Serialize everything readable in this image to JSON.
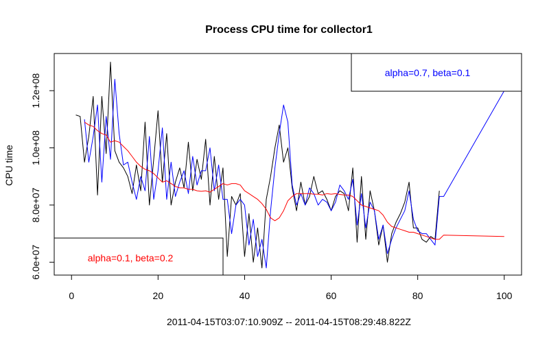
{
  "chart_data": {
    "type": "line",
    "title": "Process CPU time for collector1",
    "xlabel": "2011-04-15T03:07:10.909Z -- 2011-04-15T08:29:48.822Z",
    "ylabel": "CPU time",
    "xlim": [
      -4,
      104
    ],
    "ylim": [
      55500000,
      133000000
    ],
    "xticks": [
      0,
      20,
      40,
      60,
      80,
      100
    ],
    "xtick_labels": [
      "0",
      "20",
      "40",
      "60",
      "80",
      "100"
    ],
    "yticks": [
      60000000,
      80000000,
      100000000,
      120000000
    ],
    "ytick_labels": [
      "6.0e+07",
      "8.0e+07",
      "1.0e+08",
      "1.2e+08"
    ],
    "grid": false,
    "colors": {
      "observed": "#000000",
      "fit_a": "#0000ff",
      "fit_b": "#ff0000"
    },
    "series": [
      {
        "key": "observed",
        "color": "#000000",
        "x": [
          1,
          2,
          3,
          4,
          5,
          6,
          7,
          8,
          9,
          10,
          11,
          12,
          13,
          14,
          15,
          16,
          17,
          18,
          19,
          20,
          21,
          22,
          23,
          24,
          25,
          26,
          27,
          28,
          29,
          30,
          31,
          32,
          33,
          34,
          35,
          36,
          37,
          38,
          39,
          40,
          41,
          42,
          43,
          44,
          45,
          46,
          47,
          48,
          49,
          50,
          51,
          52,
          53,
          54,
          55,
          56,
          57,
          58,
          59,
          60,
          61,
          62,
          63,
          64,
          65,
          66,
          67,
          68,
          69,
          70,
          71,
          72,
          73,
          74,
          75,
          76,
          77,
          78,
          79,
          80,
          81,
          82,
          83,
          84,
          85
        ],
        "y": [
          111500000,
          111000000,
          95000000,
          104000000,
          118000000,
          83500000,
          118000000,
          98000000,
          130000000,
          99000000,
          95000000,
          93000000,
          90000000,
          84000000,
          94000000,
          85000000,
          109000000,
          80000000,
          96000000,
          113000000,
          88000000,
          105000000,
          80000000,
          88000000,
          93000000,
          86000000,
          102000000,
          85000000,
          96000000,
          89000000,
          103000000,
          80000000,
          97000000,
          82000000,
          93000000,
          62000000,
          83000000,
          80000000,
          84000000,
          62000000,
          77000000,
          60000000,
          72000000,
          58000000,
          82000000,
          90000000,
          100000000,
          108000000,
          95000000,
          100000000,
          86000000,
          78000000,
          88000000,
          80000000,
          83000000,
          90000000,
          84000000,
          85000000,
          82000000,
          78000000,
          83000000,
          85000000,
          84000000,
          78000000,
          93000000,
          67000000,
          90000000,
          68000000,
          85000000,
          78000000,
          66000000,
          73000000,
          60000000,
          70000000,
          74000000,
          77000000,
          81000000,
          88000000,
          72000000,
          72000000,
          68000000,
          67000000,
          69000000,
          68000000,
          85000000
        ]
      },
      {
        "key": "fit_a",
        "color": "#0000ff",
        "x": [
          3,
          4,
          5,
          6,
          7,
          8,
          9,
          10,
          11,
          12,
          13,
          14,
          15,
          16,
          17,
          18,
          19,
          20,
          21,
          22,
          23,
          24,
          25,
          26,
          27,
          28,
          29,
          30,
          31,
          32,
          33,
          34,
          35,
          36,
          37,
          38,
          39,
          40,
          41,
          42,
          43,
          44,
          45,
          46,
          47,
          48,
          49,
          50,
          51,
          52,
          53,
          54,
          55,
          56,
          57,
          58,
          59,
          60,
          61,
          62,
          63,
          64,
          65,
          66,
          67,
          68,
          69,
          70,
          71,
          72,
          73,
          74,
          75,
          76,
          77,
          78,
          79,
          80,
          81,
          82,
          83,
          84,
          85,
          86,
          100
        ],
        "y": [
          110000000,
          95000000,
          104000000,
          115000000,
          88000000,
          111000000,
          96000000,
          124000000,
          105000000,
          94000000,
          95000000,
          88000000,
          82000000,
          90000000,
          85000000,
          104000000,
          82000000,
          92000000,
          107000000,
          82000000,
          95000000,
          83000000,
          88000000,
          92000000,
          84000000,
          97000000,
          87000000,
          92000000,
          92000000,
          100000000,
          85000000,
          94000000,
          82000000,
          82000000,
          70000000,
          80000000,
          82000000,
          80000000,
          66000000,
          75000000,
          62000000,
          68000000,
          58000000,
          78000000,
          93000000,
          105000000,
          115000000,
          109000000,
          87000000,
          80000000,
          84000000,
          80000000,
          86000000,
          84000000,
          80000000,
          82000000,
          81000000,
          78000000,
          81000000,
          87000000,
          85000000,
          82000000,
          89000000,
          73000000,
          84000000,
          72000000,
          81000000,
          78000000,
          68000000,
          73000000,
          63000000,
          68000000,
          72000000,
          75000000,
          78000000,
          85000000,
          75000000,
          71000000,
          70000000,
          70000000,
          68000000,
          66000000,
          83000000,
          83000000,
          120000000
        ]
      },
      {
        "key": "fit_b",
        "color": "#ff0000",
        "x": [
          3,
          4,
          5,
          6,
          7,
          8,
          9,
          10,
          11,
          12,
          13,
          14,
          15,
          16,
          17,
          18,
          19,
          20,
          21,
          22,
          23,
          24,
          25,
          26,
          27,
          28,
          29,
          30,
          31,
          32,
          33,
          34,
          35,
          36,
          37,
          38,
          39,
          40,
          41,
          42,
          43,
          44,
          45,
          46,
          47,
          48,
          49,
          50,
          51,
          52,
          53,
          54,
          55,
          56,
          57,
          58,
          59,
          60,
          61,
          62,
          63,
          64,
          65,
          66,
          67,
          68,
          69,
          70,
          71,
          72,
          73,
          74,
          75,
          76,
          77,
          78,
          79,
          80,
          81,
          82,
          83,
          84,
          85,
          86,
          100
        ],
        "y": [
          109000000,
          108000000,
          107500000,
          106000000,
          105000000,
          104500000,
          102000000,
          102500000,
          102000000,
          100500000,
          99000000,
          97000000,
          95000000,
          93500000,
          92500000,
          92000000,
          91000000,
          89500000,
          88000000,
          88500000,
          87500000,
          86500000,
          86000000,
          86000000,
          85500000,
          85500000,
          85000000,
          84800000,
          85000000,
          84500000,
          85500000,
          86500000,
          87500000,
          87000000,
          87500000,
          87500000,
          87000000,
          85000000,
          84000000,
          83000000,
          82000000,
          80500000,
          78500000,
          75500000,
          74500000,
          75500000,
          78000000,
          81500000,
          83000000,
          84000000,
          84000000,
          84000000,
          84000000,
          83800000,
          83800000,
          83500000,
          84000000,
          83800000,
          84000000,
          83700000,
          83500000,
          83500000,
          83000000,
          81500000,
          80000000,
          79500000,
          79000000,
          78500000,
          78000000,
          76500000,
          74000000,
          72500000,
          72000000,
          71500000,
          71000000,
          70500000,
          70500000,
          70000000,
          69500000,
          69000000,
          68500000,
          68000000,
          68000000,
          69500000,
          69000000
        ]
      }
    ],
    "legend_boxes": [
      {
        "text": "alpha=0.7, beta=0.1",
        "color": "#0000ff",
        "placement": "top-right"
      },
      {
        "text": "alpha=0.1, beta=0.2",
        "color": "#ff0000",
        "placement": "bottom-left"
      }
    ]
  }
}
